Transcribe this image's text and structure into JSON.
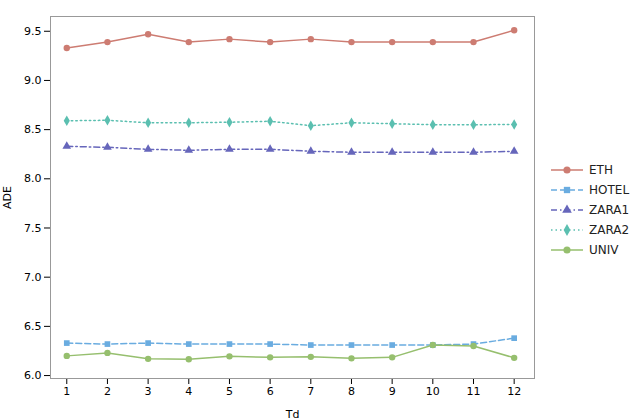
{
  "chart_data": {
    "type": "line",
    "xlabel": "Td",
    "ylabel": "ADE",
    "x": [
      1,
      2,
      3,
      4,
      5,
      6,
      7,
      8,
      9,
      10,
      11,
      12
    ],
    "series": [
      {
        "name": "ETH",
        "color": "#cd7c72",
        "marker": "circle",
        "line_style": "solid",
        "values": [
          9.33,
          9.39,
          9.47,
          9.39,
          9.42,
          9.39,
          9.42,
          9.39,
          9.39,
          9.39,
          9.39,
          9.51
        ]
      },
      {
        "name": "HOTEL",
        "color": "#6aace0",
        "marker": "square",
        "line_style": "dashed",
        "values": [
          6.33,
          6.32,
          6.33,
          6.32,
          6.32,
          6.32,
          6.31,
          6.31,
          6.31,
          6.31,
          6.32,
          6.38
        ]
      },
      {
        "name": "ZARA1",
        "color": "#6666bb",
        "marker": "triangle",
        "line_style": "dashdot",
        "values": [
          8.33,
          8.32,
          8.3,
          8.29,
          8.3,
          8.3,
          8.28,
          8.27,
          8.27,
          8.27,
          8.27,
          8.28
        ]
      },
      {
        "name": "ZARA2",
        "color": "#5bbfb0",
        "marker": "diamond",
        "line_style": "dotted",
        "values": [
          8.59,
          8.595,
          8.57,
          8.57,
          8.575,
          8.585,
          8.54,
          8.57,
          8.56,
          8.55,
          8.55,
          8.552
        ]
      },
      {
        "name": "UNIV",
        "color": "#96bf6e",
        "marker": "circle",
        "line_style": "solid",
        "values": [
          6.2,
          6.23,
          6.17,
          6.165,
          6.195,
          6.185,
          6.19,
          6.175,
          6.185,
          6.31,
          6.3,
          6.18
        ]
      }
    ],
    "xlim": [
      0.6,
      12.5
    ],
    "ylim": [
      5.97,
      9.65
    ],
    "xticks": [
      1,
      2,
      3,
      4,
      5,
      6,
      7,
      8,
      9,
      10,
      11,
      12
    ],
    "yticks": [
      {
        "value": 6,
        "label": "6.0"
      },
      6.5,
      {
        "value": 7,
        "label": "7.0"
      },
      7.5,
      {
        "value": 8,
        "label": "8.0"
      },
      8.5,
      {
        "value": 9,
        "label": "9.0"
      },
      9.5
    ],
    "grid": false,
    "legend": "center right"
  }
}
